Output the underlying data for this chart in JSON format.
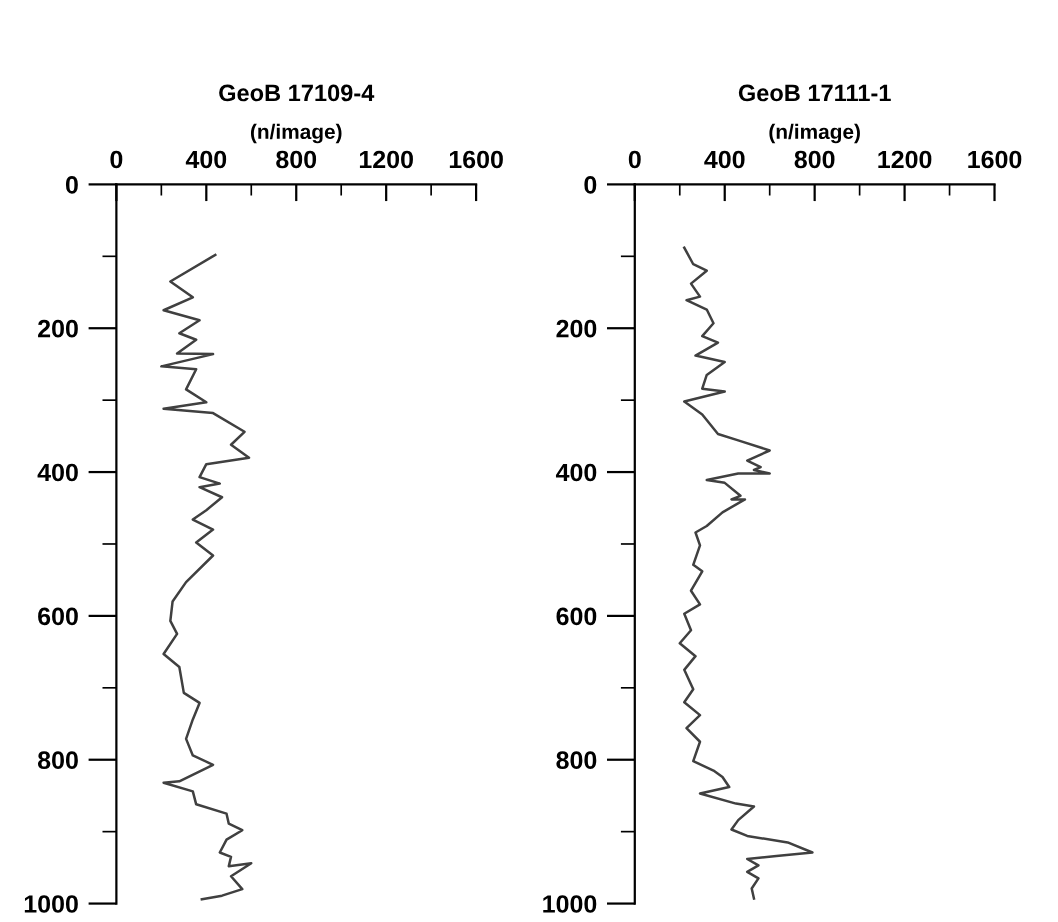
{
  "chart_data": [
    {
      "type": "line",
      "title": "GeoB 17109-4",
      "xlabel": "(n/image)",
      "xlim": [
        0,
        1600
      ],
      "ylim": [
        1000,
        0
      ],
      "xticks": [
        0,
        {
          "value": 200,
          "label": null
        },
        400,
        {
          "value": 600,
          "label": null
        },
        800,
        {
          "value": 1000,
          "label": null
        },
        1200,
        {
          "value": 1400,
          "label": null
        },
        1600
      ],
      "yticks": [
        0,
        {
          "value": 100,
          "label": null
        },
        200,
        {
          "value": 300,
          "label": null
        },
        400,
        {
          "value": 500,
          "label": null
        },
        600,
        {
          "value": 700,
          "label": null
        },
        800,
        {
          "value": 900,
          "label": null
        },
        1000
      ],
      "grid": false,
      "legend": false,
      "marker": "none",
      "line_style": "solid",
      "series": [
        {
          "color": "#404040",
          "x": [
            440,
            240,
            340,
            210,
            370,
            280,
            355,
            270,
            430,
            200,
            355,
            310,
            400,
            210,
            430,
            570,
            510,
            590,
            400,
            370,
            460,
            370,
            470,
            400,
            340,
            430,
            355,
            430,
            310,
            250,
            240,
            270,
            210,
            280,
            300,
            370,
            340,
            310,
            340,
            430,
            280,
            210,
            340,
            355,
            490,
            500,
            560,
            490,
            460,
            510,
            500,
            600,
            510,
            560,
            470,
            380
          ],
          "values": [
            98,
            135,
            157,
            175,
            189,
            207,
            216,
            235,
            236,
            253,
            257,
            285,
            303,
            312,
            318,
            344,
            362,
            380,
            389,
            407,
            416,
            421,
            435,
            453,
            466,
            480,
            498,
            516,
            553,
            580,
            607,
            625,
            653,
            671,
            707,
            721,
            744,
            771,
            794,
            807,
            830,
            832,
            844,
            862,
            875,
            889,
            898,
            911,
            929,
            935,
            948,
            944,
            962,
            980,
            989,
            994
          ]
        }
      ]
    },
    {
      "type": "line",
      "title": "GeoB 17111-1",
      "xlabel": "(n/image)",
      "xlim": [
        0,
        1600
      ],
      "ylim": [
        1000,
        0
      ],
      "xticks": [
        0,
        {
          "value": 200,
          "label": null
        },
        400,
        {
          "value": 600,
          "label": null
        },
        800,
        {
          "value": 1000,
          "label": null
        },
        1200,
        {
          "value": 1400,
          "label": null
        },
        1600
      ],
      "yticks": [
        0,
        {
          "value": 100,
          "label": null
        },
        200,
        {
          "value": 300,
          "label": null
        },
        400,
        {
          "value": 500,
          "label": null
        },
        600,
        {
          "value": 700,
          "label": null
        },
        800,
        {
          "value": 900,
          "label": null
        },
        1000
      ],
      "grid": false,
      "legend": false,
      "marker": "none",
      "line_style": "solid",
      "series": [
        {
          "color": "#404040",
          "x": [
            220,
            260,
            320,
            250,
            290,
            230,
            320,
            350,
            300,
            370,
            270,
            400,
            320,
            300,
            400,
            220,
            300,
            370,
            460,
            600,
            500,
            560,
            530,
            600,
            460,
            320,
            400,
            470,
            430,
            490,
            390,
            320,
            270,
            290,
            260,
            300,
            250,
            290,
            220,
            250,
            200,
            270,
            220,
            260,
            220,
            290,
            230,
            290,
            260,
            350,
            390,
            420,
            290,
            450,
            530,
            460,
            430,
            500,
            680,
            790,
            630,
            500,
            550,
            500,
            550,
            520,
            530
          ],
          "values": [
            88,
            111,
            120,
            138,
            156,
            161,
            174,
            193,
            211,
            220,
            238,
            247,
            265,
            284,
            288,
            302,
            320,
            347,
            356,
            370,
            384,
            393,
            397,
            402,
            402,
            411,
            415,
            433,
            438,
            438,
            456,
            475,
            484,
            502,
            529,
            538,
            565,
            584,
            597,
            620,
            638,
            656,
            675,
            702,
            720,
            738,
            756,
            775,
            802,
            815,
            824,
            838,
            847,
            861,
            865,
            884,
            897,
            906,
            915,
            929,
            934,
            938,
            947,
            956,
            965,
            979,
            993
          ]
        }
      ]
    }
  ]
}
